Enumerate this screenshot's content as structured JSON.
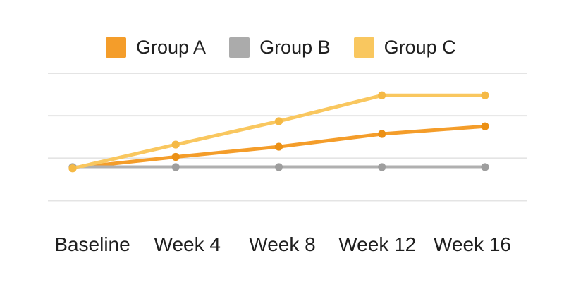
{
  "legend": {
    "items": [
      {
        "label": "Group A",
        "color": "#F49D2A"
      },
      {
        "label": "Group B",
        "color": "#ABABAB"
      },
      {
        "label": "Group C",
        "color": "#F9C75F"
      }
    ]
  },
  "x_axis": {
    "labels": [
      "Baseline",
      "Week 4",
      "Week 8",
      "Week 12",
      "Week 16"
    ]
  },
  "chart_data": {
    "type": "line",
    "title": "",
    "categories": [
      "Baseline",
      "Week 4",
      "Week 8",
      "Week 12",
      "Week 16"
    ],
    "series": [
      {
        "name": "Group A",
        "color": "#F49D2A",
        "marker_color": "#EB9015",
        "values": [
          7.7,
          10.3,
          12.7,
          15.7,
          17.5
        ]
      },
      {
        "name": "Group B",
        "color": "#B0B0B0",
        "marker_color": "#9E9E9E",
        "values": [
          7.9,
          7.9,
          7.9,
          7.9,
          7.9
        ]
      },
      {
        "name": "Group C",
        "color": "#F9C75F",
        "marker_color": "#F5B945",
        "values": [
          7.6,
          13.2,
          18.7,
          24.8,
          24.8
        ]
      }
    ],
    "ylim": [
      0,
      30
    ],
    "gridline_values": [
      0,
      10,
      20,
      30
    ],
    "y_axis_labels_visible": false,
    "grid": "horizontal-only",
    "legend_position": "top",
    "note": "no y-axis tick labels shown in image; values estimated in arbitrary units from gridlines"
  },
  "colors": {
    "background": "#FFFFFF",
    "gridline": "#E4E4E4",
    "text": "#1F1F1F"
  }
}
